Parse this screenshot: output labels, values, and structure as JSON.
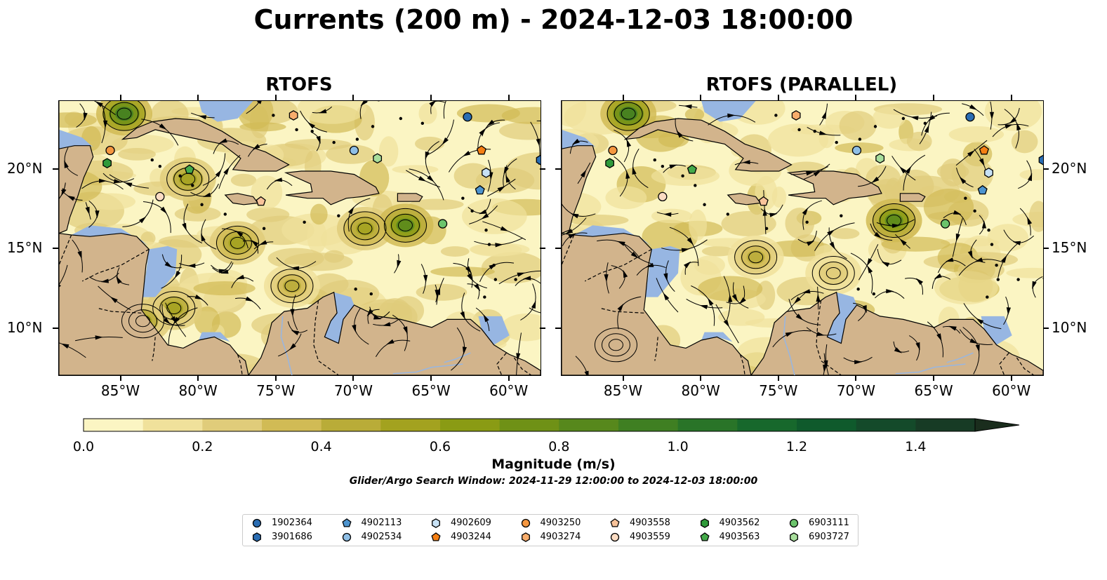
{
  "title": "Currents (200 m) - 2024-12-03 18:00:00",
  "panels": [
    {
      "title": "RTOFS"
    },
    {
      "title": "RTOFS (PARALLEL)"
    }
  ],
  "axes": {
    "lon_ticks": [
      "85°W",
      "80°W",
      "75°W",
      "70°W",
      "65°W",
      "60°W"
    ],
    "lat_ticks": [
      "20°N",
      "15°N",
      "10°N"
    ]
  },
  "colorbar": {
    "label": "Magnitude (m/s)",
    "ticks": [
      "0.0",
      "0.2",
      "0.4",
      "0.6",
      "0.8",
      "1.0",
      "1.2",
      "1.4"
    ],
    "min": 0.0,
    "max": 1.5,
    "step": 0.1,
    "extend": "max",
    "colors": [
      "#fbf5c3",
      "#f0e19b",
      "#e0cc7a",
      "#d1bb55",
      "#b9ac38",
      "#a3a21f",
      "#8a9b14",
      "#6f9116",
      "#57881c",
      "#3f7f22",
      "#297428",
      "#17682c",
      "#0f5a2c",
      "#144a2a",
      "#173b25",
      "#1a2d1d"
    ]
  },
  "search_window": "Glider/Argo Search Window: 2024-11-29 12:00:00 to 2024-12-03 18:00:00",
  "colors": {
    "land": "#d2b48c",
    "shallow_water": "#97b6e2",
    "low_speed": "#fbf5c3"
  },
  "legend": [
    {
      "id": "1902364",
      "marker": "circle",
      "color": "#2a6db3"
    },
    {
      "id": "3901686",
      "marker": "hexagon",
      "color": "#2a6db3"
    },
    {
      "id": "4902113",
      "marker": "pentagon",
      "color": "#4d94cf"
    },
    {
      "id": "4902534",
      "marker": "circle",
      "color": "#8fbfe6"
    },
    {
      "id": "4902609",
      "marker": "hexagon",
      "color": "#c7e1f5"
    },
    {
      "id": "4903244",
      "marker": "pentagon",
      "color": "#f47f14"
    },
    {
      "id": "4903250",
      "marker": "circle",
      "color": "#f59740"
    },
    {
      "id": "4903274",
      "marker": "hexagon",
      "color": "#f8ad6c"
    },
    {
      "id": "4903558",
      "marker": "pentagon",
      "color": "#f8c39a"
    },
    {
      "id": "4903559",
      "marker": "circle",
      "color": "#fbdcc3"
    },
    {
      "id": "4903562",
      "marker": "hexagon",
      "color": "#2f9a3a"
    },
    {
      "id": "4903563",
      "marker": "pentagon",
      "color": "#44aa4a"
    },
    {
      "id": "6903111",
      "marker": "circle",
      "color": "#6cc46c"
    },
    {
      "id": "6903727",
      "marker": "hexagon",
      "color": "#a8de9c"
    }
  ],
  "floats_left": [
    {
      "id": "1902364",
      "lon": -62.7,
      "lat": 23.3
    },
    {
      "id": "3901686",
      "lon": -58.0,
      "lat": 20.6
    },
    {
      "id": "4902113",
      "lon": -61.9,
      "lat": 18.7
    },
    {
      "id": "4902534",
      "lon": -70.0,
      "lat": 21.2
    },
    {
      "id": "4902609",
      "lon": -61.5,
      "lat": 19.8
    },
    {
      "id": "4903244",
      "lon": -61.8,
      "lat": 21.2
    },
    {
      "id": "4903250",
      "lon": -85.7,
      "lat": 21.2
    },
    {
      "id": "4903274",
      "lon": -73.9,
      "lat": 23.4
    },
    {
      "id": "4903558",
      "lon": -76.0,
      "lat": 18.0
    },
    {
      "id": "4903559",
      "lon": -82.5,
      "lat": 18.3
    },
    {
      "id": "4903562",
      "lon": -85.9,
      "lat": 20.4
    },
    {
      "id": "4903563",
      "lon": -80.6,
      "lat": 20.0
    },
    {
      "id": "6903111",
      "lon": -64.3,
      "lat": 16.6
    },
    {
      "id": "6903727",
      "lon": -68.5,
      "lat": 20.7
    }
  ],
  "floats_right": [
    {
      "id": "1902364",
      "lon": -62.7,
      "lat": 23.3
    },
    {
      "id": "3901686",
      "lon": -58.0,
      "lat": 20.6
    },
    {
      "id": "4902113",
      "lon": -61.9,
      "lat": 18.7
    },
    {
      "id": "4902534",
      "lon": -70.0,
      "lat": 21.2
    },
    {
      "id": "4902609",
      "lon": -61.5,
      "lat": 19.8
    },
    {
      "id": "4903244",
      "lon": -61.8,
      "lat": 21.2
    },
    {
      "id": "4903250",
      "lon": -85.7,
      "lat": 21.2
    },
    {
      "id": "4903274",
      "lon": -73.9,
      "lat": 23.4
    },
    {
      "id": "4903558",
      "lon": -76.0,
      "lat": 18.0
    },
    {
      "id": "4903559",
      "lon": -82.5,
      "lat": 18.3
    },
    {
      "id": "4903562",
      "lon": -85.9,
      "lat": 20.4
    },
    {
      "id": "4903563",
      "lon": -80.6,
      "lat": 20.0
    },
    {
      "id": "6903111",
      "lon": -64.3,
      "lat": 16.6
    },
    {
      "id": "6903727",
      "lon": -68.5,
      "lat": 20.7
    }
  ],
  "eddies_left": [
    {
      "lon": -77.5,
      "lat": 15.4,
      "speed": 0.6
    },
    {
      "lon": -69.3,
      "lat": 16.3,
      "speed": 0.6
    },
    {
      "lon": -66.7,
      "lat": 16.5,
      "speed": 0.8
    },
    {
      "lon": -80.7,
      "lat": 19.4,
      "speed": 0.5
    },
    {
      "lon": -81.6,
      "lat": 11.3,
      "speed": 0.5
    },
    {
      "lon": -83.6,
      "lat": 10.5,
      "speed": 0.5
    },
    {
      "lon": -74.0,
      "lat": 12.7,
      "speed": 0.4
    },
    {
      "lon": -84.8,
      "lat": 23.5,
      "speed": 0.9
    }
  ],
  "eddies_right": [
    {
      "lon": -67.6,
      "lat": 16.8,
      "speed": 0.8
    },
    {
      "lon": -76.5,
      "lat": 14.5,
      "speed": 0.4
    },
    {
      "lon": -85.5,
      "lat": 9.0,
      "speed": 0.6
    },
    {
      "lon": -84.7,
      "lat": 23.5,
      "speed": 0.9
    },
    {
      "lon": -71.5,
      "lat": 13.5,
      "speed": 0.3
    }
  ]
}
